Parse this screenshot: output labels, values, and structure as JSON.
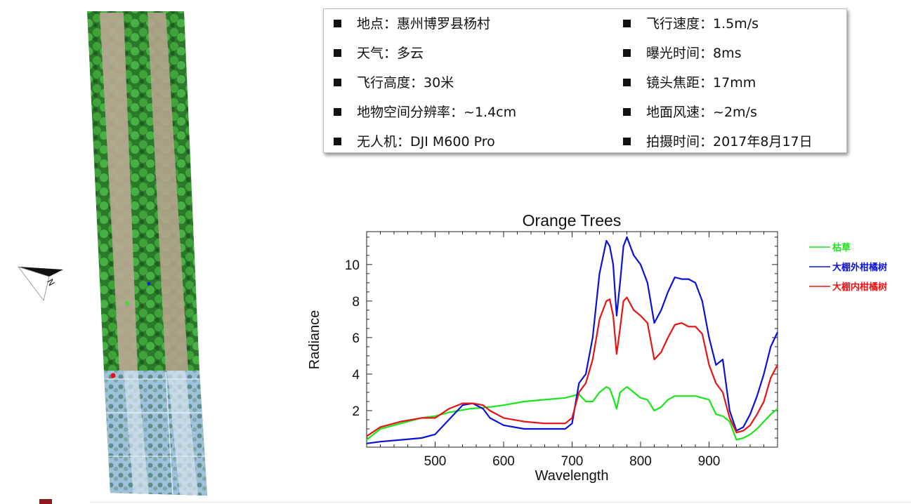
{
  "info": {
    "left": [
      {
        "label": "地点",
        "value": "惠州博罗县杨村"
      },
      {
        "label": "天气",
        "value": "多云"
      },
      {
        "label": "飞行高度",
        "value": "30米"
      },
      {
        "label": "地物空间分辨率",
        "value": "~1.4cm"
      },
      {
        "label": "无人机",
        "value": "DJI M600 Pro"
      }
    ],
    "right": [
      {
        "label": "飞行速度",
        "value": "1.5m/s"
      },
      {
        "label": "曝光时间",
        "value": "8ms"
      },
      {
        "label": "镜头焦距",
        "value": "17mm"
      },
      {
        "label": "地面风速",
        "value": "~2m/s"
      },
      {
        "label": "拍摄时间",
        "value": "2017年8月17日"
      }
    ],
    "separator": "："
  },
  "compass": {
    "letter": "N"
  },
  "colors": {
    "green": "#19e619",
    "blue": "#0a12d6",
    "red": "#e61414",
    "aerial_green": "#2f8a2a",
    "soil": "#b8a993",
    "hyper": "#a6c6df"
  },
  "chart_data": {
    "type": "line",
    "title": "Orange Trees",
    "xlabel": "Wavelength",
    "ylabel": "Radiance",
    "xlim": [
      400,
      1000
    ],
    "ylim": [
      0,
      11.8
    ],
    "xticks": [
      500,
      600,
      700,
      800,
      900
    ],
    "yticks": [
      2,
      4,
      6,
      8,
      10
    ],
    "legend_position": "right",
    "series": [
      {
        "name": "枯草",
        "color": "#19e619",
        "x": [
          400,
          420,
          450,
          480,
          500,
          520,
          550,
          580,
          600,
          630,
          660,
          690,
          700,
          710,
          720,
          730,
          740,
          750,
          755,
          760,
          765,
          770,
          780,
          790,
          800,
          810,
          820,
          830,
          840,
          850,
          860,
          870,
          880,
          890,
          900,
          910,
          920,
          930,
          940,
          950,
          960,
          970,
          980,
          990,
          1000
        ],
        "y": [
          0.4,
          1.0,
          1.3,
          1.6,
          1.7,
          1.9,
          2.1,
          2.2,
          2.3,
          2.5,
          2.6,
          2.7,
          2.8,
          2.9,
          2.5,
          2.5,
          3.0,
          3.3,
          3.2,
          2.7,
          2.1,
          3.0,
          3.3,
          3.0,
          2.7,
          2.6,
          2.0,
          2.2,
          2.6,
          2.8,
          2.8,
          2.8,
          2.8,
          2.7,
          2.6,
          1.8,
          1.7,
          1.4,
          0.4,
          0.5,
          0.7,
          1.0,
          1.4,
          1.8,
          2.1
        ]
      },
      {
        "name": "大棚外柑橘树",
        "color": "#0a12d6",
        "x": [
          400,
          420,
          450,
          480,
          500,
          520,
          540,
          555,
          570,
          580,
          600,
          630,
          660,
          690,
          700,
          710,
          720,
          730,
          740,
          750,
          755,
          760,
          765,
          770,
          775,
          780,
          790,
          800,
          810,
          820,
          830,
          840,
          850,
          860,
          870,
          880,
          890,
          900,
          910,
          920,
          930,
          940,
          950,
          960,
          970,
          980,
          990,
          1000
        ],
        "y": [
          0.2,
          0.3,
          0.4,
          0.5,
          0.7,
          1.5,
          2.3,
          2.4,
          2.1,
          1.6,
          1.2,
          1.0,
          1.0,
          1.0,
          1.3,
          3.5,
          4.0,
          6.0,
          9.5,
          11.3,
          11.0,
          10.0,
          7.2,
          9.0,
          11.0,
          11.5,
          10.5,
          10.0,
          9.0,
          6.8,
          7.5,
          8.5,
          9.3,
          9.2,
          9.2,
          9.0,
          8.0,
          6.0,
          4.5,
          4.8,
          2.0,
          0.9,
          1.1,
          1.8,
          2.8,
          4.0,
          5.5,
          6.3
        ]
      },
      {
        "name": "大棚内柑橘树",
        "color": "#e61414",
        "x": [
          400,
          420,
          450,
          480,
          500,
          520,
          540,
          555,
          570,
          580,
          600,
          630,
          660,
          690,
          700,
          710,
          720,
          730,
          740,
          750,
          755,
          760,
          765,
          770,
          775,
          780,
          790,
          800,
          810,
          820,
          830,
          840,
          850,
          860,
          870,
          880,
          890,
          900,
          910,
          920,
          930,
          940,
          950,
          960,
          970,
          980,
          990,
          1000
        ],
        "y": [
          0.6,
          1.1,
          1.4,
          1.6,
          1.6,
          2.1,
          2.4,
          2.4,
          2.3,
          2.0,
          1.6,
          1.4,
          1.3,
          1.3,
          1.6,
          3.0,
          3.5,
          4.8,
          7.0,
          8.0,
          8.1,
          7.2,
          5.1,
          6.5,
          8.0,
          8.2,
          7.5,
          7.2,
          6.8,
          4.8,
          5.2,
          6.0,
          6.7,
          6.8,
          6.6,
          6.6,
          6.2,
          4.5,
          3.5,
          3.0,
          1.6,
          0.8,
          0.9,
          1.2,
          1.8,
          2.5,
          3.8,
          4.5
        ]
      }
    ]
  }
}
